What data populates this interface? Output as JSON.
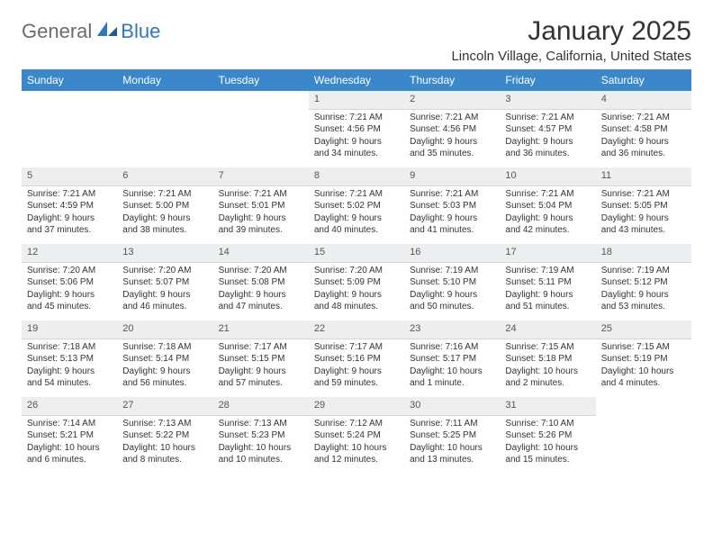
{
  "logo": {
    "general": "General",
    "blue": "Blue"
  },
  "title": "January 2025",
  "location": "Lincoln Village, California, United States",
  "colors": {
    "header_bg": "#3a87c9",
    "daynum_bg": "#eceeef",
    "logo_blue": "#2f78bf",
    "logo_gray": "#6b6b6b"
  },
  "weekdays": [
    "Sunday",
    "Monday",
    "Tuesday",
    "Wednesday",
    "Thursday",
    "Friday",
    "Saturday"
  ],
  "weeks": [
    [
      null,
      null,
      null,
      {
        "n": "1",
        "sr": "Sunrise: 7:21 AM",
        "ss": "Sunset: 4:56 PM",
        "d1": "Daylight: 9 hours",
        "d2": "and 34 minutes."
      },
      {
        "n": "2",
        "sr": "Sunrise: 7:21 AM",
        "ss": "Sunset: 4:56 PM",
        "d1": "Daylight: 9 hours",
        "d2": "and 35 minutes."
      },
      {
        "n": "3",
        "sr": "Sunrise: 7:21 AM",
        "ss": "Sunset: 4:57 PM",
        "d1": "Daylight: 9 hours",
        "d2": "and 36 minutes."
      },
      {
        "n": "4",
        "sr": "Sunrise: 7:21 AM",
        "ss": "Sunset: 4:58 PM",
        "d1": "Daylight: 9 hours",
        "d2": "and 36 minutes."
      }
    ],
    [
      {
        "n": "5",
        "sr": "Sunrise: 7:21 AM",
        "ss": "Sunset: 4:59 PM",
        "d1": "Daylight: 9 hours",
        "d2": "and 37 minutes."
      },
      {
        "n": "6",
        "sr": "Sunrise: 7:21 AM",
        "ss": "Sunset: 5:00 PM",
        "d1": "Daylight: 9 hours",
        "d2": "and 38 minutes."
      },
      {
        "n": "7",
        "sr": "Sunrise: 7:21 AM",
        "ss": "Sunset: 5:01 PM",
        "d1": "Daylight: 9 hours",
        "d2": "and 39 minutes."
      },
      {
        "n": "8",
        "sr": "Sunrise: 7:21 AM",
        "ss": "Sunset: 5:02 PM",
        "d1": "Daylight: 9 hours",
        "d2": "and 40 minutes."
      },
      {
        "n": "9",
        "sr": "Sunrise: 7:21 AM",
        "ss": "Sunset: 5:03 PM",
        "d1": "Daylight: 9 hours",
        "d2": "and 41 minutes."
      },
      {
        "n": "10",
        "sr": "Sunrise: 7:21 AM",
        "ss": "Sunset: 5:04 PM",
        "d1": "Daylight: 9 hours",
        "d2": "and 42 minutes."
      },
      {
        "n": "11",
        "sr": "Sunrise: 7:21 AM",
        "ss": "Sunset: 5:05 PM",
        "d1": "Daylight: 9 hours",
        "d2": "and 43 minutes."
      }
    ],
    [
      {
        "n": "12",
        "sr": "Sunrise: 7:20 AM",
        "ss": "Sunset: 5:06 PM",
        "d1": "Daylight: 9 hours",
        "d2": "and 45 minutes."
      },
      {
        "n": "13",
        "sr": "Sunrise: 7:20 AM",
        "ss": "Sunset: 5:07 PM",
        "d1": "Daylight: 9 hours",
        "d2": "and 46 minutes."
      },
      {
        "n": "14",
        "sr": "Sunrise: 7:20 AM",
        "ss": "Sunset: 5:08 PM",
        "d1": "Daylight: 9 hours",
        "d2": "and 47 minutes."
      },
      {
        "n": "15",
        "sr": "Sunrise: 7:20 AM",
        "ss": "Sunset: 5:09 PM",
        "d1": "Daylight: 9 hours",
        "d2": "and 48 minutes."
      },
      {
        "n": "16",
        "sr": "Sunrise: 7:19 AM",
        "ss": "Sunset: 5:10 PM",
        "d1": "Daylight: 9 hours",
        "d2": "and 50 minutes."
      },
      {
        "n": "17",
        "sr": "Sunrise: 7:19 AM",
        "ss": "Sunset: 5:11 PM",
        "d1": "Daylight: 9 hours",
        "d2": "and 51 minutes."
      },
      {
        "n": "18",
        "sr": "Sunrise: 7:19 AM",
        "ss": "Sunset: 5:12 PM",
        "d1": "Daylight: 9 hours",
        "d2": "and 53 minutes."
      }
    ],
    [
      {
        "n": "19",
        "sr": "Sunrise: 7:18 AM",
        "ss": "Sunset: 5:13 PM",
        "d1": "Daylight: 9 hours",
        "d2": "and 54 minutes."
      },
      {
        "n": "20",
        "sr": "Sunrise: 7:18 AM",
        "ss": "Sunset: 5:14 PM",
        "d1": "Daylight: 9 hours",
        "d2": "and 56 minutes."
      },
      {
        "n": "21",
        "sr": "Sunrise: 7:17 AM",
        "ss": "Sunset: 5:15 PM",
        "d1": "Daylight: 9 hours",
        "d2": "and 57 minutes."
      },
      {
        "n": "22",
        "sr": "Sunrise: 7:17 AM",
        "ss": "Sunset: 5:16 PM",
        "d1": "Daylight: 9 hours",
        "d2": "and 59 minutes."
      },
      {
        "n": "23",
        "sr": "Sunrise: 7:16 AM",
        "ss": "Sunset: 5:17 PM",
        "d1": "Daylight: 10 hours",
        "d2": "and 1 minute."
      },
      {
        "n": "24",
        "sr": "Sunrise: 7:15 AM",
        "ss": "Sunset: 5:18 PM",
        "d1": "Daylight: 10 hours",
        "d2": "and 2 minutes."
      },
      {
        "n": "25",
        "sr": "Sunrise: 7:15 AM",
        "ss": "Sunset: 5:19 PM",
        "d1": "Daylight: 10 hours",
        "d2": "and 4 minutes."
      }
    ],
    [
      {
        "n": "26",
        "sr": "Sunrise: 7:14 AM",
        "ss": "Sunset: 5:21 PM",
        "d1": "Daylight: 10 hours",
        "d2": "and 6 minutes."
      },
      {
        "n": "27",
        "sr": "Sunrise: 7:13 AM",
        "ss": "Sunset: 5:22 PM",
        "d1": "Daylight: 10 hours",
        "d2": "and 8 minutes."
      },
      {
        "n": "28",
        "sr": "Sunrise: 7:13 AM",
        "ss": "Sunset: 5:23 PM",
        "d1": "Daylight: 10 hours",
        "d2": "and 10 minutes."
      },
      {
        "n": "29",
        "sr": "Sunrise: 7:12 AM",
        "ss": "Sunset: 5:24 PM",
        "d1": "Daylight: 10 hours",
        "d2": "and 12 minutes."
      },
      {
        "n": "30",
        "sr": "Sunrise: 7:11 AM",
        "ss": "Sunset: 5:25 PM",
        "d1": "Daylight: 10 hours",
        "d2": "and 13 minutes."
      },
      {
        "n": "31",
        "sr": "Sunrise: 7:10 AM",
        "ss": "Sunset: 5:26 PM",
        "d1": "Daylight: 10 hours",
        "d2": "and 15 minutes."
      },
      null
    ]
  ]
}
